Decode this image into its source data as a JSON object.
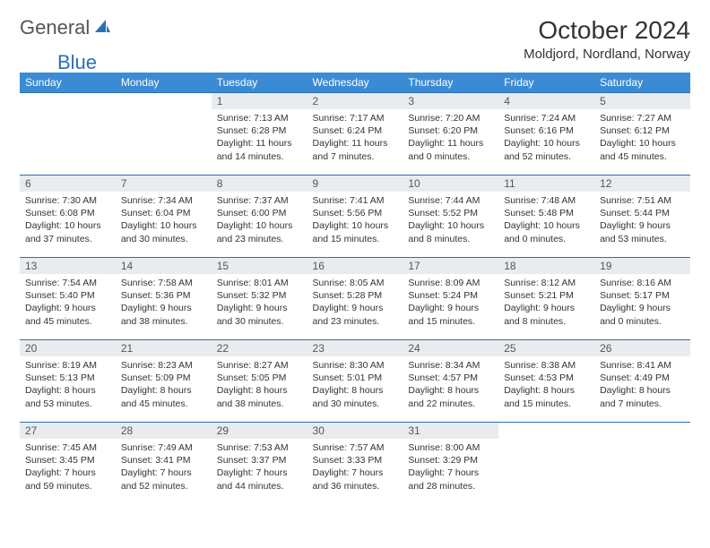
{
  "brand": {
    "general": "General",
    "blue": "Blue"
  },
  "title": "October 2024",
  "location": "Moldjord, Nordland, Norway",
  "colors": {
    "header_bg": "#3b8bd4",
    "header_text": "#ffffff",
    "daynum_bg": "#e9ecef",
    "row_divider": "#2a6fb5",
    "brand_accent": "#2a6fb5"
  },
  "weekdays": [
    "Sunday",
    "Monday",
    "Tuesday",
    "Wednesday",
    "Thursday",
    "Friday",
    "Saturday"
  ],
  "weeks": [
    [
      null,
      null,
      {
        "n": "1",
        "sr": "7:13 AM",
        "ss": "6:28 PM",
        "dl": "11 hours and 14 minutes"
      },
      {
        "n": "2",
        "sr": "7:17 AM",
        "ss": "6:24 PM",
        "dl": "11 hours and 7 minutes"
      },
      {
        "n": "3",
        "sr": "7:20 AM",
        "ss": "6:20 PM",
        "dl": "11 hours and 0 minutes"
      },
      {
        "n": "4",
        "sr": "7:24 AM",
        "ss": "6:16 PM",
        "dl": "10 hours and 52 minutes"
      },
      {
        "n": "5",
        "sr": "7:27 AM",
        "ss": "6:12 PM",
        "dl": "10 hours and 45 minutes"
      }
    ],
    [
      {
        "n": "6",
        "sr": "7:30 AM",
        "ss": "6:08 PM",
        "dl": "10 hours and 37 minutes"
      },
      {
        "n": "7",
        "sr": "7:34 AM",
        "ss": "6:04 PM",
        "dl": "10 hours and 30 minutes"
      },
      {
        "n": "8",
        "sr": "7:37 AM",
        "ss": "6:00 PM",
        "dl": "10 hours and 23 minutes"
      },
      {
        "n": "9",
        "sr": "7:41 AM",
        "ss": "5:56 PM",
        "dl": "10 hours and 15 minutes"
      },
      {
        "n": "10",
        "sr": "7:44 AM",
        "ss": "5:52 PM",
        "dl": "10 hours and 8 minutes"
      },
      {
        "n": "11",
        "sr": "7:48 AM",
        "ss": "5:48 PM",
        "dl": "10 hours and 0 minutes"
      },
      {
        "n": "12",
        "sr": "7:51 AM",
        "ss": "5:44 PM",
        "dl": "9 hours and 53 minutes"
      }
    ],
    [
      {
        "n": "13",
        "sr": "7:54 AM",
        "ss": "5:40 PM",
        "dl": "9 hours and 45 minutes"
      },
      {
        "n": "14",
        "sr": "7:58 AM",
        "ss": "5:36 PM",
        "dl": "9 hours and 38 minutes"
      },
      {
        "n": "15",
        "sr": "8:01 AM",
        "ss": "5:32 PM",
        "dl": "9 hours and 30 minutes"
      },
      {
        "n": "16",
        "sr": "8:05 AM",
        "ss": "5:28 PM",
        "dl": "9 hours and 23 minutes"
      },
      {
        "n": "17",
        "sr": "8:09 AM",
        "ss": "5:24 PM",
        "dl": "9 hours and 15 minutes"
      },
      {
        "n": "18",
        "sr": "8:12 AM",
        "ss": "5:21 PM",
        "dl": "9 hours and 8 minutes"
      },
      {
        "n": "19",
        "sr": "8:16 AM",
        "ss": "5:17 PM",
        "dl": "9 hours and 0 minutes"
      }
    ],
    [
      {
        "n": "20",
        "sr": "8:19 AM",
        "ss": "5:13 PM",
        "dl": "8 hours and 53 minutes"
      },
      {
        "n": "21",
        "sr": "8:23 AM",
        "ss": "5:09 PM",
        "dl": "8 hours and 45 minutes"
      },
      {
        "n": "22",
        "sr": "8:27 AM",
        "ss": "5:05 PM",
        "dl": "8 hours and 38 minutes"
      },
      {
        "n": "23",
        "sr": "8:30 AM",
        "ss": "5:01 PM",
        "dl": "8 hours and 30 minutes"
      },
      {
        "n": "24",
        "sr": "8:34 AM",
        "ss": "4:57 PM",
        "dl": "8 hours and 22 minutes"
      },
      {
        "n": "25",
        "sr": "8:38 AM",
        "ss": "4:53 PM",
        "dl": "8 hours and 15 minutes"
      },
      {
        "n": "26",
        "sr": "8:41 AM",
        "ss": "4:49 PM",
        "dl": "8 hours and 7 minutes"
      }
    ],
    [
      {
        "n": "27",
        "sr": "7:45 AM",
        "ss": "3:45 PM",
        "dl": "7 hours and 59 minutes"
      },
      {
        "n": "28",
        "sr": "7:49 AM",
        "ss": "3:41 PM",
        "dl": "7 hours and 52 minutes"
      },
      {
        "n": "29",
        "sr": "7:53 AM",
        "ss": "3:37 PM",
        "dl": "7 hours and 44 minutes"
      },
      {
        "n": "30",
        "sr": "7:57 AM",
        "ss": "3:33 PM",
        "dl": "7 hours and 36 minutes"
      },
      {
        "n": "31",
        "sr": "8:00 AM",
        "ss": "3:29 PM",
        "dl": "7 hours and 28 minutes"
      },
      null,
      null
    ]
  ],
  "labels": {
    "sunrise": "Sunrise:",
    "sunset": "Sunset:",
    "daylight": "Daylight:"
  }
}
